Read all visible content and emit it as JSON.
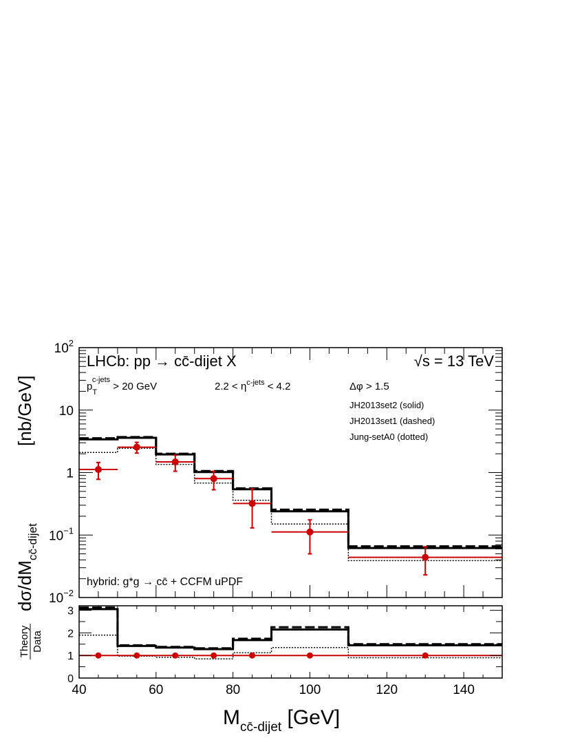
{
  "chart_data": [
    {
      "type": "histogram",
      "panel": "main",
      "xlim": [
        40,
        150
      ],
      "ylim": [
        0.01,
        100
      ],
      "yscale": "log",
      "grid": false,
      "title": "LHCb: pp → cc̄-dijet X",
      "energy_label": "√s = 13 TeV",
      "ylabel_main": "dσ/dM",
      "ylabel_sub": "cc̄-dijet",
      "ylabel_unit": "[nb/GeV]",
      "cuts": {
        "pt_base": "p",
        "pt_sub": "T",
        "pt_sup": "c-jets",
        "pt_rest": "> 20 GeV",
        "eta_left": "2.2 < η",
        "eta_sup": "c-jets",
        "eta_right": "< 4.2",
        "dphi": "Δφ > 1.5"
      },
      "legend": [
        "JH2013set2 (solid)",
        "JH2013set1 (dashed)",
        "Jung-setA0 (dotted)"
      ],
      "annotation": "hybrid: g*g → cc̄ + CCFM uPDF",
      "yticks": [
        {
          "value": 100,
          "label_base": "10",
          "label_exp": "2"
        },
        {
          "value": 10,
          "label_base": "10",
          "label_exp": ""
        },
        {
          "value": 1,
          "label_base": "1",
          "label_exp": ""
        },
        {
          "value": 0.1,
          "label_base": "10",
          "label_exp": "−1"
        },
        {
          "value": 0.01,
          "label_base": "10",
          "label_exp": "−2"
        }
      ],
      "bin_edges": [
        40,
        50,
        60,
        70,
        80,
        90,
        110,
        150
      ],
      "series": [
        {
          "name": "JH2013set2 (solid)",
          "style": "solid",
          "values": [
            3.4,
            3.6,
            1.95,
            1.02,
            0.54,
            0.24,
            0.062
          ]
        },
        {
          "name": "JH2013set1 (dashed)",
          "style": "dashed",
          "values": [
            3.55,
            3.7,
            2.0,
            1.06,
            0.56,
            0.255,
            0.066
          ]
        },
        {
          "name": "Jung-setA0 (dotted)",
          "style": "dotted",
          "values": [
            2.1,
            2.45,
            1.35,
            0.68,
            0.36,
            0.15,
            0.039
          ]
        }
      ],
      "data_points": [
        {
          "x": 45,
          "xlow": 40,
          "xhigh": 50,
          "y": 1.12,
          "ylow": 0.78,
          "yhigh": 1.45
        },
        {
          "x": 55,
          "xlow": 50,
          "xhigh": 60,
          "y": 2.55,
          "ylow": 2.05,
          "yhigh": 3.05
        },
        {
          "x": 65,
          "xlow": 60,
          "xhigh": 70,
          "y": 1.48,
          "ylow": 1.05,
          "yhigh": 1.9
        },
        {
          "x": 75,
          "xlow": 70,
          "xhigh": 80,
          "y": 0.8,
          "ylow": 0.53,
          "yhigh": 1.05
        },
        {
          "x": 85,
          "xlow": 80,
          "xhigh": 90,
          "y": 0.32,
          "ylow": 0.13,
          "yhigh": 0.55
        },
        {
          "x": 100,
          "xlow": 90,
          "xhigh": 110,
          "y": 0.112,
          "ylow": 0.05,
          "yhigh": 0.175
        },
        {
          "x": 130,
          "xlow": 110,
          "xhigh": 150,
          "y": 0.044,
          "ylow": 0.023,
          "yhigh": 0.065
        }
      ]
    },
    {
      "type": "histogram",
      "panel": "ratio",
      "xlim": [
        40,
        150
      ],
      "ylim": [
        0,
        3.2
      ],
      "yscale": "linear",
      "ylabel_num": "Theory",
      "ylabel_den": "Data",
      "yticks": [
        0,
        1,
        2,
        3
      ],
      "ytick_labels": [
        "0",
        "1",
        "2",
        "3"
      ],
      "xticks": [
        40,
        60,
        80,
        100,
        120,
        140
      ],
      "xtick_labels": [
        "40",
        "60",
        "80",
        "100",
        "120",
        "140"
      ],
      "xlabel_main": "M",
      "xlabel_sub": "cc̄-dijet",
      "xlabel_unit": "[GeV]",
      "bin_edges": [
        40,
        50,
        60,
        70,
        80,
        90,
        110,
        150
      ],
      "series": [
        {
          "name": "JH2013set2 (solid)",
          "style": "solid",
          "values": [
            3.05,
            1.42,
            1.35,
            1.28,
            1.68,
            2.15,
            1.45
          ]
        },
        {
          "name": "JH2013set1 (dashed)",
          "style": "dashed",
          "values": [
            3.12,
            1.45,
            1.38,
            1.32,
            1.74,
            2.25,
            1.5
          ]
        },
        {
          "name": "Jung-setA0 (dotted)",
          "style": "dotted",
          "values": [
            1.9,
            0.97,
            0.92,
            0.85,
            1.12,
            1.35,
            0.9
          ]
        }
      ],
      "data_points": [
        {
          "x": 45,
          "y": 1,
          "xlow": 40,
          "xhigh": 50
        },
        {
          "x": 55,
          "y": 1,
          "xlow": 50,
          "xhigh": 60
        },
        {
          "x": 65,
          "y": 1,
          "xlow": 60,
          "xhigh": 70
        },
        {
          "x": 75,
          "y": 1,
          "xlow": 70,
          "xhigh": 80
        },
        {
          "x": 85,
          "y": 1,
          "xlow": 80,
          "xhigh": 90
        },
        {
          "x": 100,
          "y": 1,
          "xlow": 90,
          "xhigh": 110
        },
        {
          "x": 130,
          "y": 1,
          "xlow": 110,
          "xhigh": 150
        }
      ]
    }
  ],
  "colors": {
    "data": "#cc0000",
    "theory": "#000000"
  }
}
